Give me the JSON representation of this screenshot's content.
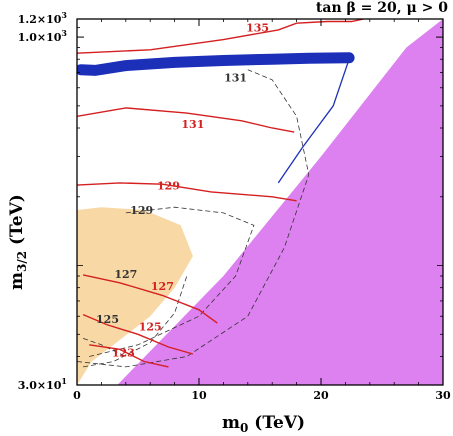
{
  "chart_data": {
    "type": "contour",
    "title": "tan β = 20, μ > 0",
    "xlabel": "m",
    "xlabel_sub": "0",
    "xlabel_unit": " (TeV)",
    "ylabel": "m",
    "ylabel_sub": "3/2",
    "ylabel_unit": " (TeV)",
    "xlim": [
      0,
      30
    ],
    "ylim": [
      30,
      1200
    ],
    "yscale": "log",
    "x_ticks": [
      "0",
      "10",
      "20",
      "30"
    ],
    "y_ticks": [
      {
        "value": 30,
        "label": "3.0×10",
        "exp": "1"
      },
      {
        "value": 1000,
        "label": "1.0×10",
        "exp": "3"
      },
      {
        "value": 1200,
        "label": "1.2×10",
        "exp": "3"
      }
    ],
    "colors": {
      "excluded_region": "#dd80f0",
      "favored_region": "#f8d8a4",
      "dark_matter_band": "#1c2fb8",
      "higgs_contour": "#d42020",
      "dashed_contour": "#333333"
    },
    "higgs_mass_contours": [
      {
        "label": "123",
        "x": [
          1.0,
          3.5,
          5.5,
          7.5
        ],
        "y": [
          45,
          43,
          38,
          36
        ]
      },
      {
        "label": "125",
        "x": [
          0.5,
          2.5,
          5.0,
          7.5,
          9.5
        ],
        "y": [
          61,
          55,
          50,
          44,
          41
        ]
      },
      {
        "label": "127",
        "x": [
          0.5,
          3.5,
          7.0,
          10.0,
          11.5
        ],
        "y": [
          91,
          84,
          74,
          64,
          56
        ]
      },
      {
        "label": "129",
        "x": [
          0.0,
          3.5,
          7.0,
          11.0,
          16.0,
          18.0
        ],
        "y": [
          225,
          230,
          227,
          210,
          200,
          192
        ]
      },
      {
        "label": "131",
        "x": [
          0.0,
          4.0,
          9.0,
          13.5,
          16.0,
          17.8
        ],
        "y": [
          450,
          490,
          465,
          430,
          400,
          384
        ]
      },
      {
        "label": "135",
        "x": [
          0.0,
          6.0,
          12.0,
          16.5,
          18.0,
          20.5,
          22.5,
          23.5
        ],
        "y": [
          850,
          880,
          975,
          1075,
          1150,
          1170,
          1170,
          1200
        ]
      }
    ],
    "dashed_contour_labels": [
      "131",
      "129",
      "127",
      "125"
    ],
    "annotations": [
      "135",
      "131",
      "131",
      "129",
      "129",
      "127",
      "127",
      "125",
      "125",
      "123"
    ]
  }
}
